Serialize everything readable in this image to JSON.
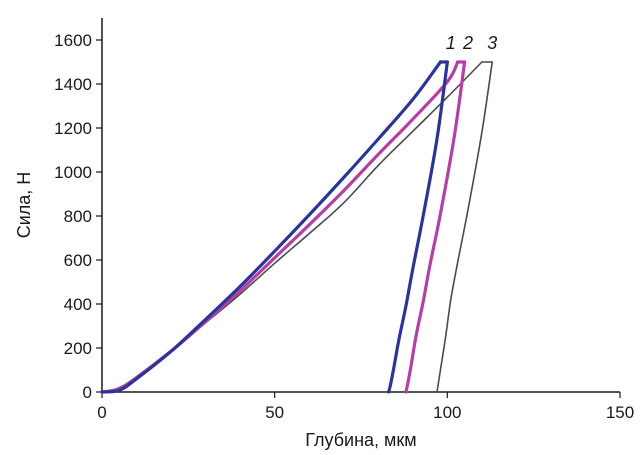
{
  "chart_data": {
    "type": "line",
    "title": "",
    "xlabel": "Глубина, мкм",
    "ylabel": "Сила, Н",
    "xlim": [
      0,
      150
    ],
    "ylim": [
      0,
      1700
    ],
    "xticks": [
      0,
      50,
      100,
      150
    ],
    "yticks": [
      0,
      200,
      400,
      600,
      800,
      1000,
      1200,
      1400,
      1600
    ],
    "xtick_labels": [
      "0",
      "50",
      "100",
      "150"
    ],
    "ytick_labels": [
      "0",
      "200",
      "400",
      "600",
      "800",
      "1000",
      "1200",
      "1400",
      "1600"
    ],
    "grid": false,
    "legend": "none",
    "series": [
      {
        "name": "1",
        "color": "#2b3595",
        "loading": {
          "x": [
            0,
            5,
            10,
            20,
            30,
            40,
            50,
            60,
            70,
            80,
            90,
            98
          ],
          "y": [
            0,
            8,
            60,
            185,
            330,
            480,
            640,
            805,
            975,
            1150,
            1330,
            1500
          ]
        },
        "hold": {
          "x": [
            98,
            100
          ],
          "y": [
            1500,
            1500
          ]
        },
        "unloading": {
          "x": [
            100,
            97,
            93,
            90,
            88,
            86,
            84.5,
            83.5,
            83
          ],
          "y": [
            1500,
            1150,
            800,
            560,
            390,
            240,
            110,
            30,
            0
          ]
        }
      },
      {
        "name": "2",
        "color": "#b43fa5",
        "loading": {
          "x": [
            0,
            5,
            10,
            20,
            30,
            40,
            50,
            60,
            70,
            80,
            90,
            100,
            103
          ],
          "y": [
            0,
            15,
            65,
            185,
            320,
            460,
            610,
            760,
            915,
            1080,
            1240,
            1410,
            1500
          ]
        },
        "hold": {
          "x": [
            103,
            105
          ],
          "y": [
            1500,
            1500
          ]
        },
        "unloading": {
          "x": [
            105,
            102,
            98,
            95,
            93,
            91,
            89.5,
            88.5,
            88
          ],
          "y": [
            1500,
            1160,
            810,
            580,
            410,
            260,
            120,
            35,
            0
          ]
        }
      },
      {
        "name": "3",
        "color": "#4a4a4a",
        "loading": {
          "x": [
            0,
            5,
            10,
            20,
            30,
            40,
            50,
            60,
            70,
            80,
            90,
            100,
            110
          ],
          "y": [
            0,
            20,
            70,
            190,
            315,
            445,
            585,
            720,
            860,
            1030,
            1185,
            1340,
            1500
          ]
        },
        "hold": {
          "x": [
            110,
            113
          ],
          "y": [
            1500,
            1500
          ]
        },
        "unloading": {
          "x": [
            113,
            110,
            106,
            103,
            101,
            99.5,
            98,
            97
          ],
          "y": [
            1500,
            1180,
            830,
            590,
            420,
            250,
            100,
            0
          ]
        }
      }
    ],
    "curve_labels": [
      {
        "text": "1",
        "x": 101,
        "y": 1560
      },
      {
        "text": "2",
        "x": 106,
        "y": 1560
      },
      {
        "text": "3",
        "x": 113,
        "y": 1560
      }
    ]
  }
}
